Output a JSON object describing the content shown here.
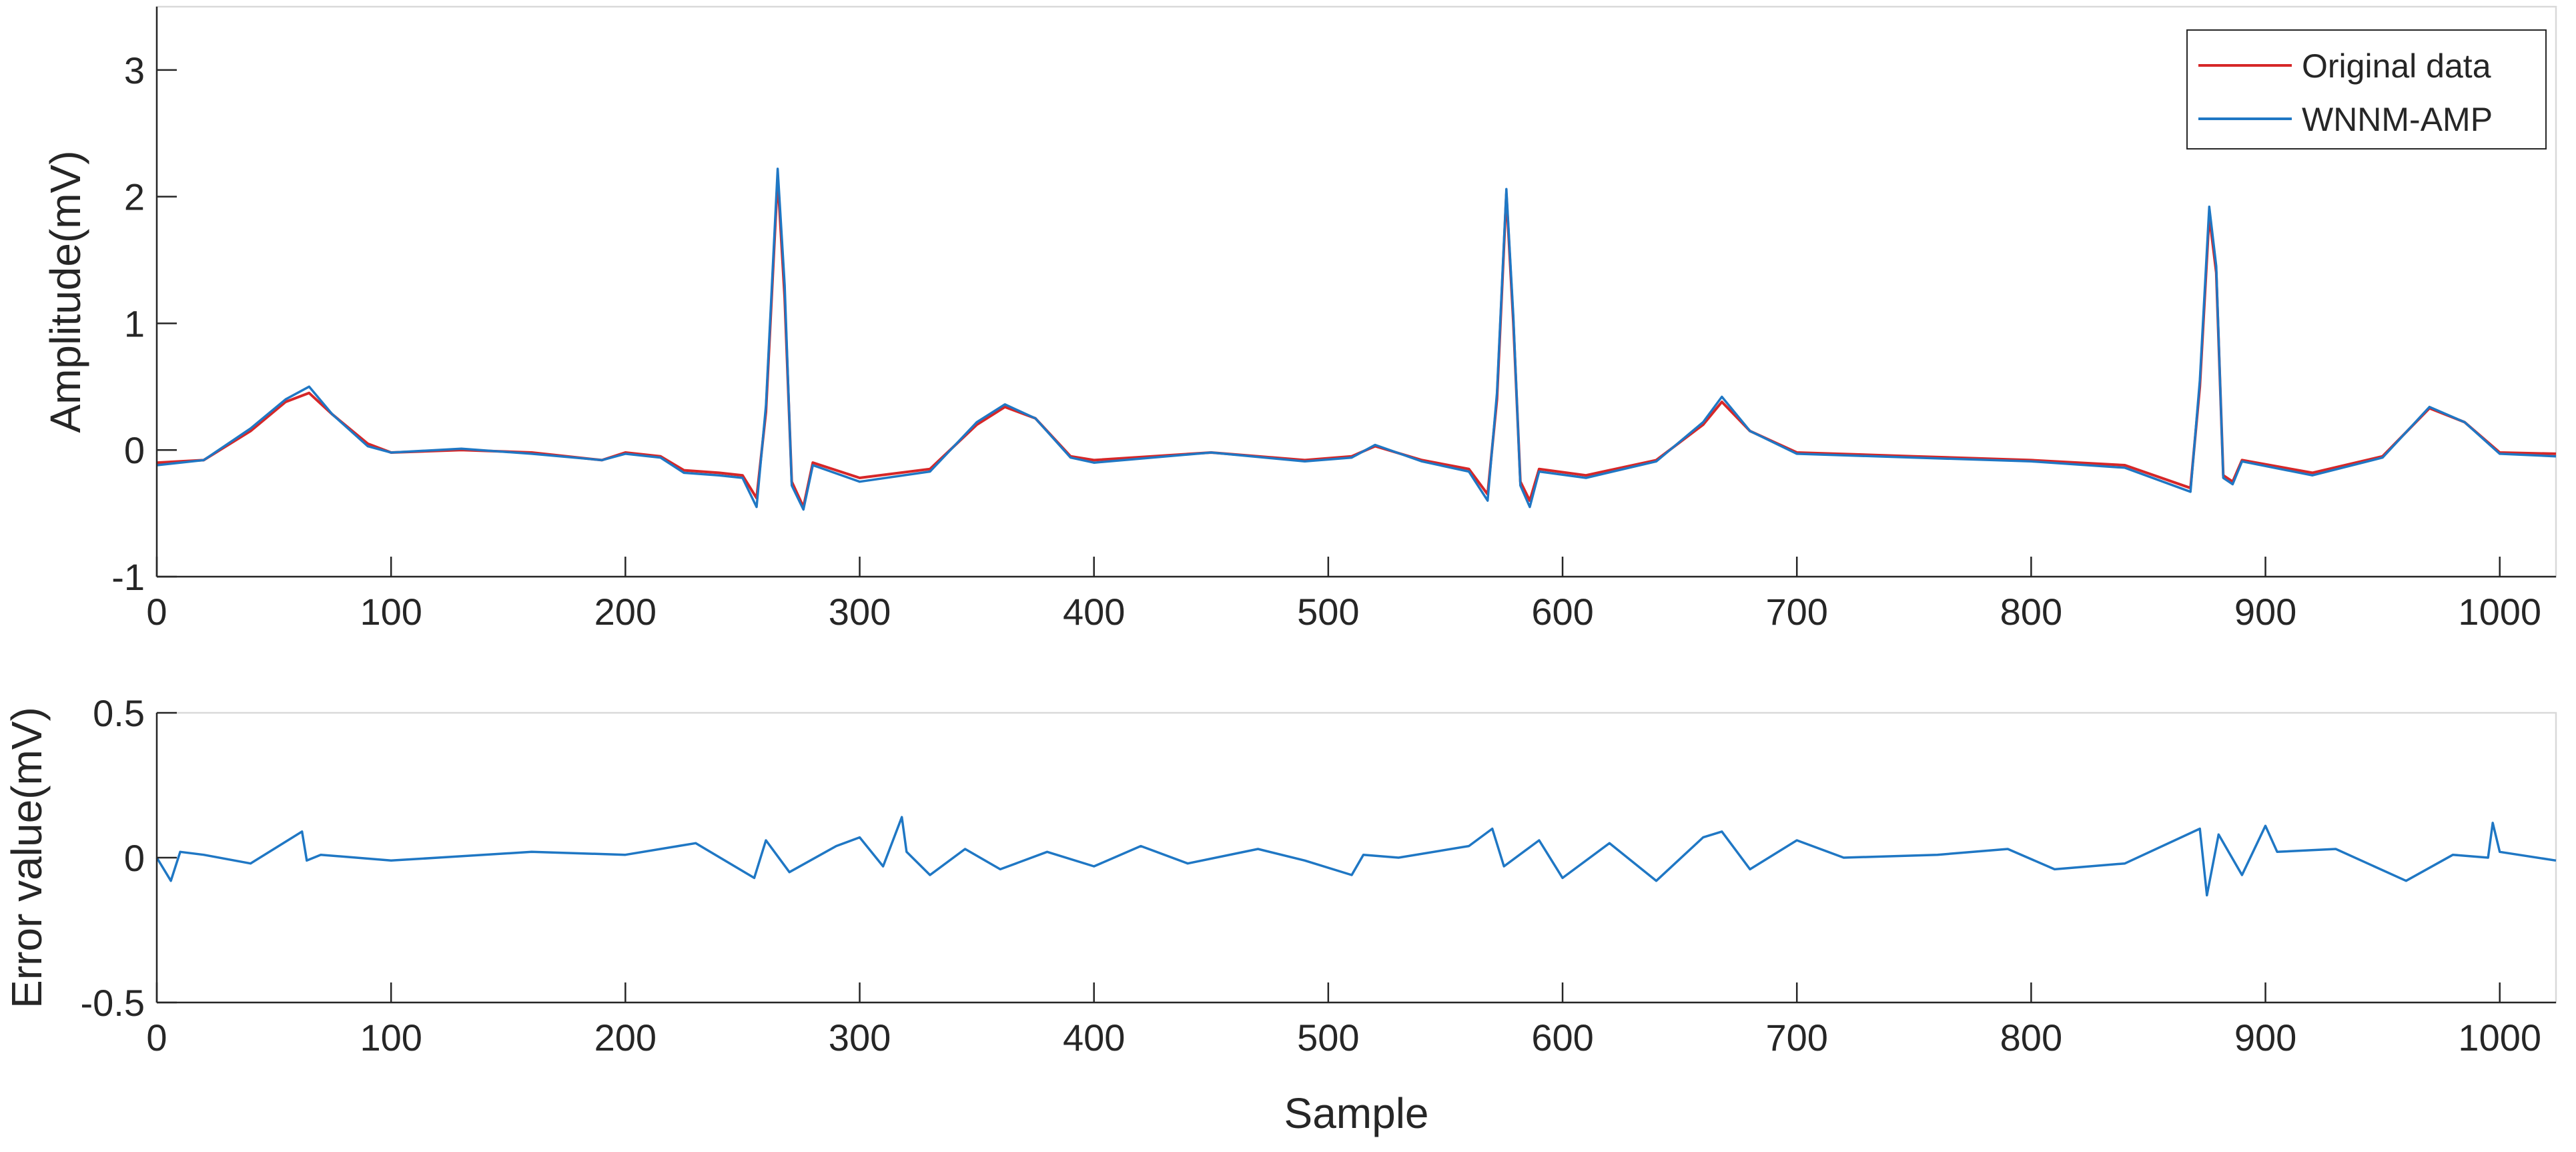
{
  "chart_data": [
    {
      "type": "line",
      "xlabel": "",
      "ylabel": "Amplitude(mV)",
      "xlim": [
        0,
        1024
      ],
      "ylim": [
        -1,
        3.5
      ],
      "xticks": [
        "0",
        "100",
        "200",
        "300",
        "400",
        "500",
        "600",
        "700",
        "800",
        "900",
        "1000"
      ],
      "yticks": [
        "-1",
        "0",
        "1",
        "2",
        "3"
      ],
      "legend_position": "top-right",
      "grid": false,
      "series": [
        {
          "name": "Original data",
          "color": "#d62728",
          "x": [
            0,
            20,
            40,
            55,
            65,
            75,
            90,
            100,
            130,
            160,
            190,
            200,
            215,
            225,
            240,
            250,
            256,
            260,
            265,
            268,
            271,
            276,
            280,
            300,
            330,
            350,
            362,
            375,
            390,
            400,
            450,
            490,
            510,
            520,
            540,
            560,
            568,
            572,
            576,
            579,
            582,
            586,
            590,
            610,
            640,
            660,
            668,
            680,
            700,
            750,
            800,
            840,
            868,
            872,
            876,
            879,
            882,
            886,
            890,
            920,
            950,
            970,
            985,
            1000,
            1024
          ],
          "values": [
            -0.1,
            -0.08,
            0.15,
            0.38,
            0.45,
            0.28,
            0.05,
            -0.02,
            0.0,
            -0.02,
            -0.08,
            -0.02,
            -0.05,
            -0.16,
            -0.18,
            -0.2,
            -0.38,
            0.3,
            2.15,
            1.2,
            -0.25,
            -0.45,
            -0.1,
            -0.22,
            -0.15,
            0.2,
            0.34,
            0.25,
            -0.05,
            -0.08,
            -0.02,
            -0.08,
            -0.05,
            0.03,
            -0.08,
            -0.15,
            -0.35,
            0.4,
            2.02,
            1.0,
            -0.25,
            -0.4,
            -0.15,
            -0.2,
            -0.08,
            0.2,
            0.38,
            0.15,
            -0.02,
            -0.05,
            -0.08,
            -0.12,
            -0.3,
            0.5,
            1.85,
            1.4,
            -0.2,
            -0.25,
            -0.08,
            -0.18,
            -0.05,
            0.33,
            0.22,
            -0.02,
            -0.03
          ]
        },
        {
          "name": "WNNM-AMP",
          "color": "#1f77c4",
          "x": [
            0,
            20,
            40,
            55,
            65,
            75,
            90,
            100,
            130,
            160,
            190,
            200,
            215,
            225,
            240,
            250,
            256,
            260,
            265,
            268,
            271,
            276,
            280,
            300,
            330,
            350,
            362,
            375,
            390,
            400,
            450,
            490,
            510,
            520,
            540,
            560,
            568,
            572,
            576,
            579,
            582,
            586,
            590,
            610,
            640,
            660,
            668,
            680,
            700,
            750,
            800,
            840,
            868,
            872,
            876,
            879,
            882,
            886,
            890,
            920,
            950,
            970,
            985,
            1000,
            1024
          ],
          "values": [
            -0.12,
            -0.08,
            0.17,
            0.4,
            0.5,
            0.28,
            0.03,
            -0.02,
            0.01,
            -0.03,
            -0.08,
            -0.03,
            -0.06,
            -0.18,
            -0.2,
            -0.22,
            -0.45,
            0.35,
            2.22,
            1.3,
            -0.28,
            -0.47,
            -0.12,
            -0.25,
            -0.17,
            0.22,
            0.36,
            0.25,
            -0.06,
            -0.1,
            -0.02,
            -0.09,
            -0.06,
            0.04,
            -0.09,
            -0.17,
            -0.4,
            0.45,
            2.06,
            1.05,
            -0.28,
            -0.45,
            -0.17,
            -0.22,
            -0.09,
            0.22,
            0.42,
            0.15,
            -0.03,
            -0.06,
            -0.09,
            -0.14,
            -0.33,
            0.55,
            1.92,
            1.45,
            -0.22,
            -0.27,
            -0.09,
            -0.2,
            -0.06,
            0.34,
            0.22,
            -0.03,
            -0.05
          ]
        }
      ]
    },
    {
      "type": "line",
      "xlabel": "Sample",
      "ylabel": "Error value(mV)",
      "xlim": [
        0,
        1024
      ],
      "ylim": [
        -0.5,
        0.5
      ],
      "xticks": [
        "0",
        "100",
        "200",
        "300",
        "400",
        "500",
        "600",
        "700",
        "800",
        "900",
        "1000"
      ],
      "yticks": [
        "-0.5",
        "0",
        "0.5"
      ],
      "grid": false,
      "series": [
        {
          "color": "#1f77c4",
          "x": [
            0,
            6,
            10,
            20,
            40,
            62,
            64,
            70,
            100,
            120,
            160,
            200,
            230,
            255,
            260,
            270,
            290,
            300,
            310,
            318,
            320,
            330,
            345,
            360,
            380,
            400,
            420,
            440,
            470,
            490,
            510,
            515,
            530,
            560,
            570,
            575,
            590,
            600,
            620,
            640,
            660,
            668,
            680,
            700,
            720,
            760,
            790,
            810,
            840,
            872,
            875,
            880,
            890,
            900,
            905,
            930,
            960,
            980,
            995,
            997,
            1000,
            1024
          ],
          "values": [
            0.0,
            -0.08,
            0.02,
            0.01,
            -0.02,
            0.09,
            -0.01,
            0.01,
            -0.01,
            0.0,
            0.02,
            0.01,
            0.05,
            -0.07,
            0.06,
            -0.05,
            0.04,
            0.07,
            -0.03,
            0.14,
            0.02,
            -0.06,
            0.03,
            -0.04,
            0.02,
            -0.03,
            0.04,
            -0.02,
            0.03,
            -0.01,
            -0.06,
            0.01,
            0.0,
            0.04,
            0.1,
            -0.03,
            0.06,
            -0.07,
            0.05,
            -0.08,
            0.07,
            0.09,
            -0.04,
            0.06,
            0.0,
            0.01,
            0.03,
            -0.04,
            -0.02,
            0.1,
            -0.13,
            0.08,
            -0.06,
            0.11,
            0.02,
            0.03,
            -0.08,
            0.01,
            0.0,
            0.12,
            0.02,
            -0.01
          ]
        }
      ]
    }
  ]
}
